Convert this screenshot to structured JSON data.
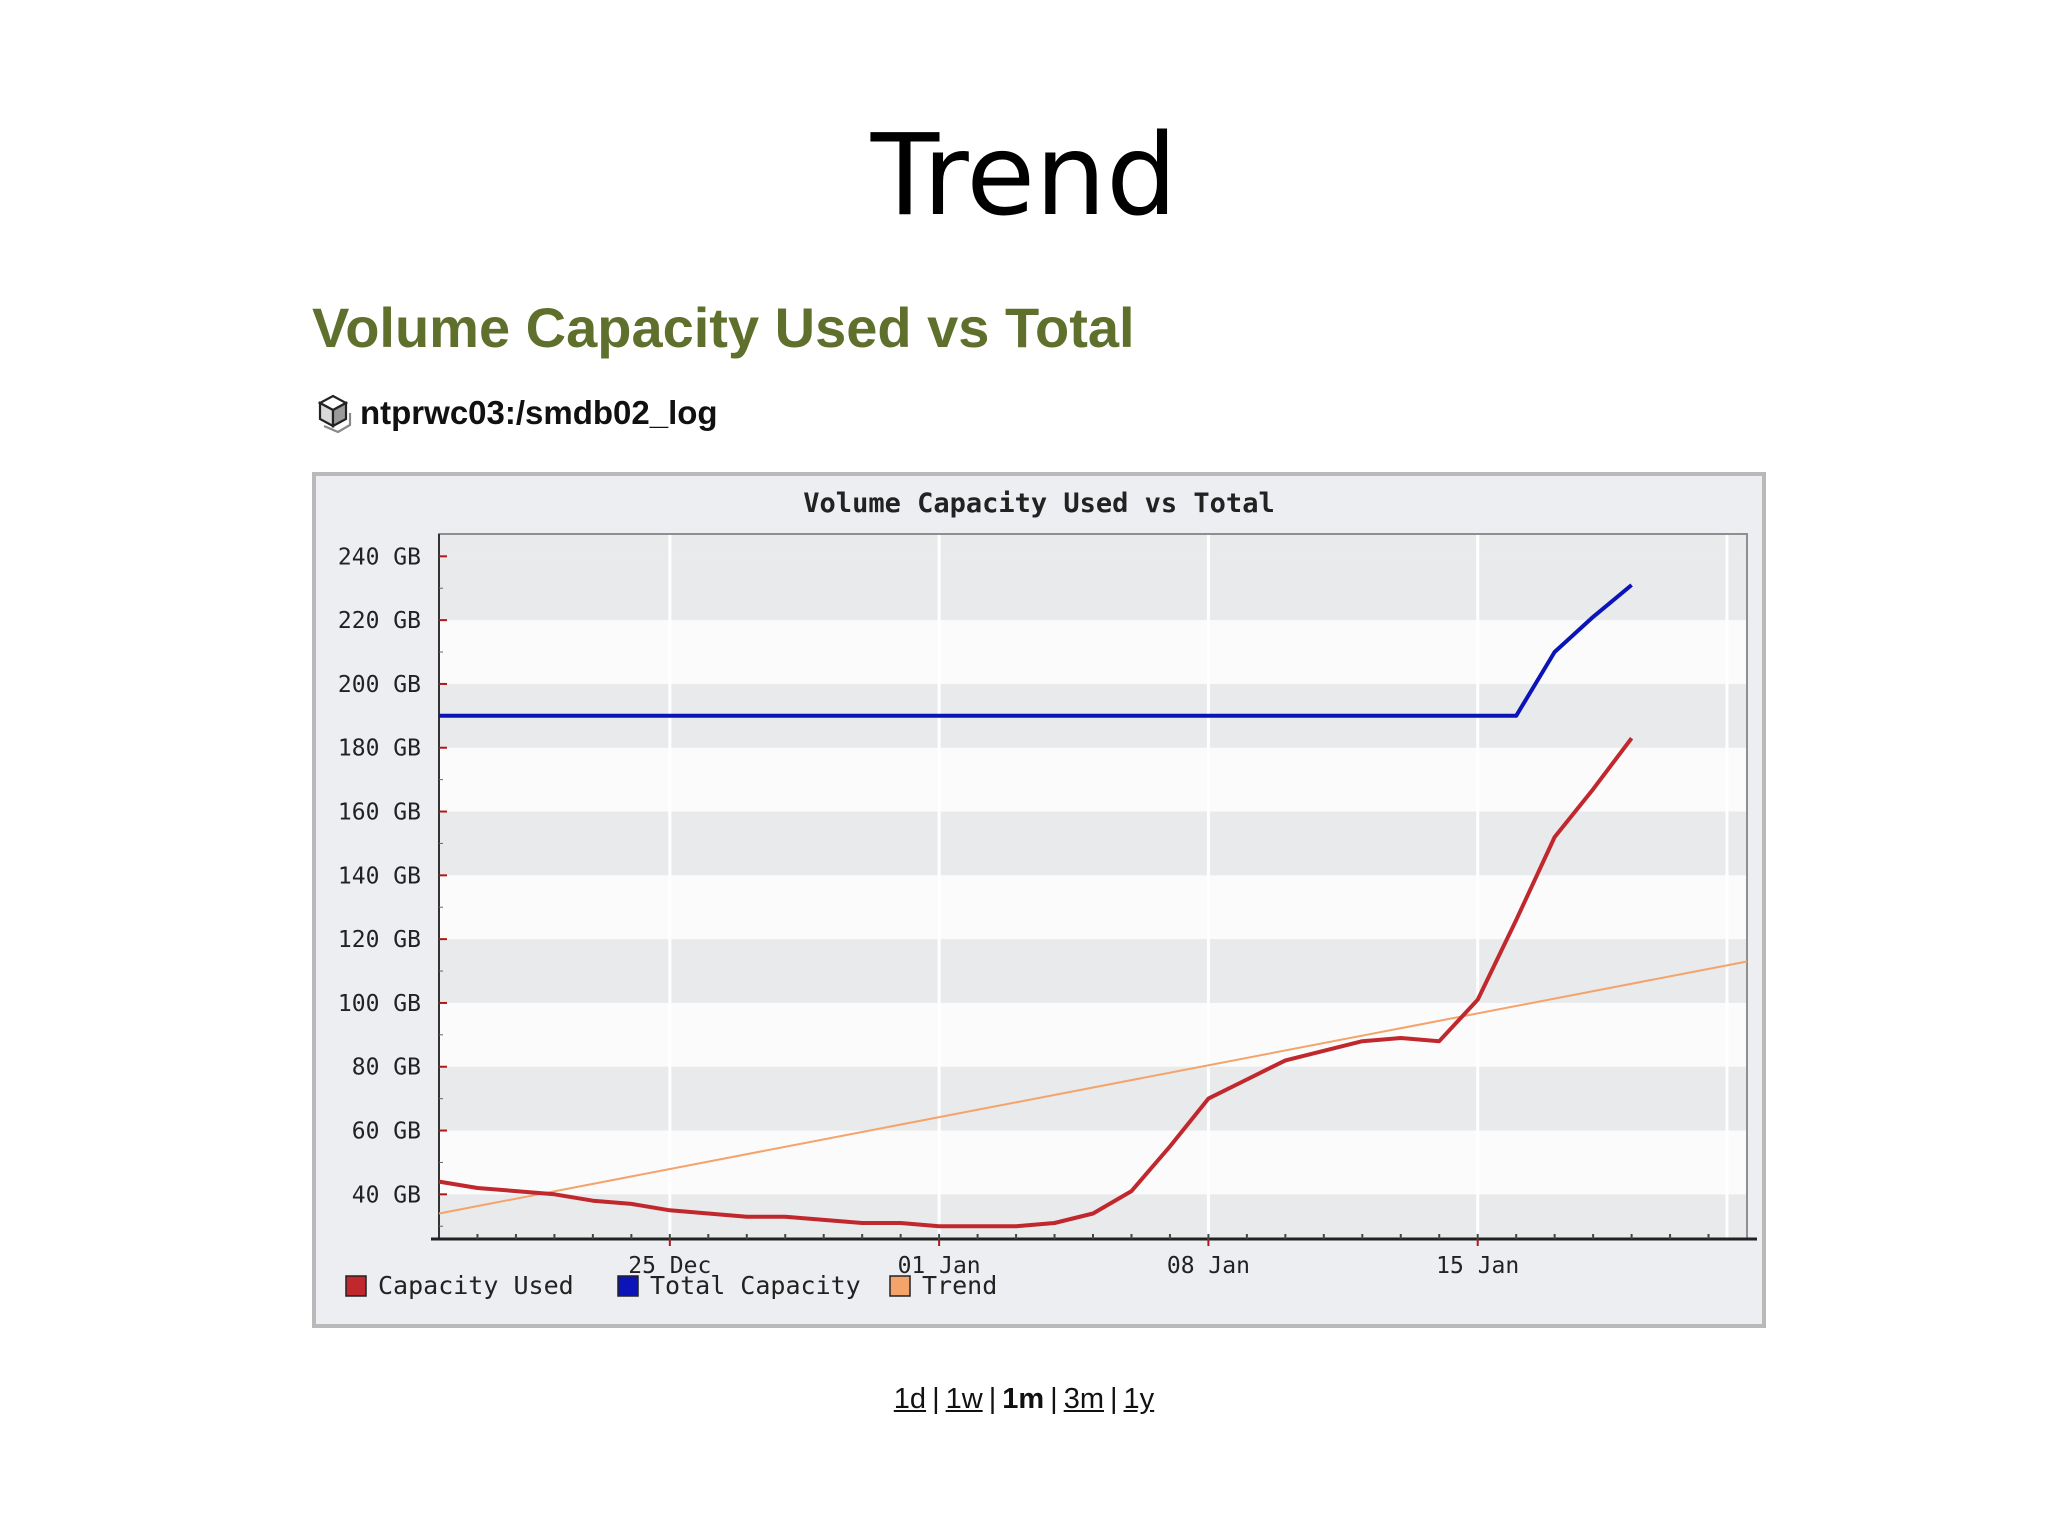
{
  "slide_title": "Trend",
  "panel_heading": "Volume Capacity Used vs Total",
  "volume": {
    "icon": "volume-cube-icon",
    "name": "ntprwc03:/smdb02_log"
  },
  "range_links": [
    "1d",
    "1w",
    "1m",
    "3m",
    "1y"
  ],
  "range_selected": "1m",
  "colors": {
    "capacity_used": "#c0282d",
    "total_capacity": "#0a14b8",
    "trend": "#f4a36a",
    "band_shaded": "#e9eaec",
    "band_plain": "#fbfbfb",
    "heading": "#5f6f2c"
  },
  "chart_data": {
    "type": "line",
    "title": "Volume Capacity Used vs Total",
    "x_axis": {
      "start": "2006-12-19",
      "end": "2007-01-22",
      "ticks": [
        {
          "date": "2006-12-25",
          "label": "25 Dec"
        },
        {
          "date": "2007-01-01",
          "label": "01 Jan"
        },
        {
          "date": "2007-01-08",
          "label": "08 Jan"
        },
        {
          "date": "2007-01-15",
          "label": "15 Jan"
        }
      ]
    },
    "y_axis": {
      "ylim": [
        26,
        247
      ],
      "unit": "GB",
      "ticks": [
        40,
        60,
        80,
        100,
        120,
        140,
        160,
        180,
        200,
        220,
        240
      ],
      "tick_labels": [
        "40 GB",
        "60 GB",
        "80 GB",
        "100 GB",
        "120 GB",
        "140 GB",
        "160 GB",
        "180 GB",
        "200 GB",
        "220 GB",
        "240 GB"
      ]
    },
    "grid": true,
    "legend_position": "bottom-left",
    "series": [
      {
        "name": "Capacity Used",
        "color": "#c0282d",
        "x": [
          "2006-12-19",
          "2006-12-20",
          "2006-12-21",
          "2006-12-22",
          "2006-12-23",
          "2006-12-24",
          "2006-12-25",
          "2006-12-26",
          "2006-12-27",
          "2006-12-28",
          "2006-12-29",
          "2006-12-30",
          "2006-12-31",
          "2007-01-01",
          "2007-01-02",
          "2007-01-03",
          "2007-01-04",
          "2007-01-05",
          "2007-01-06",
          "2007-01-07",
          "2007-01-08",
          "2007-01-09",
          "2007-01-10",
          "2007-01-11",
          "2007-01-12",
          "2007-01-13",
          "2007-01-14",
          "2007-01-15",
          "2007-01-16",
          "2007-01-17",
          "2007-01-18",
          "2007-01-19"
        ],
        "y": [
          44,
          42,
          41,
          40,
          38,
          37,
          35,
          34,
          33,
          33,
          32,
          31,
          31,
          30,
          30,
          30,
          31,
          34,
          41,
          55,
          70,
          76,
          82,
          85,
          88,
          89,
          88,
          101,
          126,
          152,
          167,
          183
        ]
      },
      {
        "name": "Total Capacity",
        "color": "#0a14b8",
        "x": [
          "2006-12-19",
          "2007-01-16",
          "2007-01-17",
          "2007-01-18",
          "2007-01-19"
        ],
        "y": [
          190,
          190,
          210,
          221,
          231
        ]
      },
      {
        "name": "Trend",
        "color": "#f4a36a",
        "x": [
          "2006-12-19",
          "2007-01-22"
        ],
        "y": [
          34,
          113
        ]
      }
    ]
  }
}
